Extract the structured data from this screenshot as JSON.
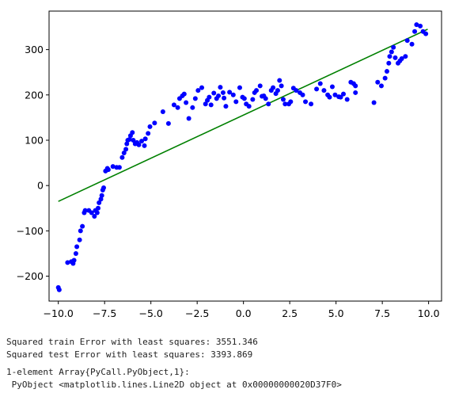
{
  "chart_data": {
    "type": "scatter",
    "xlim": [
      -10.5,
      10.7
    ],
    "ylim": [
      -255,
      385
    ],
    "xticks": [
      -10.0,
      -7.5,
      -5.0,
      -2.5,
      0.0,
      2.5,
      5.0,
      7.5,
      10.0
    ],
    "xtick_labels": [
      "−10.0",
      "−7.5",
      "−5.0",
      "−2.5",
      "0.0",
      "2.5",
      "5.0",
      "7.5",
      "10.0"
    ],
    "yticks": [
      -200,
      -100,
      0,
      100,
      200,
      300
    ],
    "ytick_labels": [
      "−200",
      "−100",
      "0",
      "100",
      "200",
      "300"
    ],
    "grid": false,
    "legend": "none",
    "scatter_color": "#0000ff",
    "line_color": "#008000",
    "scatter_x": [
      -10.0,
      -9.95,
      -9.5,
      -9.3,
      -9.2,
      -9.15,
      -9.05,
      -9.0,
      -8.85,
      -8.8,
      -8.7,
      -8.6,
      -8.55,
      -8.35,
      -8.2,
      -8.05,
      -8.0,
      -7.9,
      -7.85,
      -7.8,
      -7.7,
      -7.65,
      -7.6,
      -7.55,
      -7.45,
      -7.35,
      -7.3,
      -7.05,
      -6.85,
      -6.7,
      -6.55,
      -6.45,
      -6.35,
      -6.3,
      -6.25,
      -6.15,
      -6.1,
      -6.0,
      -5.95,
      -5.85,
      -5.75,
      -5.65,
      -5.5,
      -5.35,
      -5.3,
      -5.15,
      -5.05,
      -4.8,
      -4.35,
      -4.05,
      -3.75,
      -3.55,
      -3.45,
      -3.3,
      -3.2,
      -3.1,
      -2.95,
      -2.75,
      -2.6,
      -2.45,
      -2.25,
      -2.05,
      -1.95,
      -1.85,
      -1.75,
      -1.6,
      -1.45,
      -1.35,
      -1.25,
      -1.1,
      -1.05,
      -0.95,
      -0.75,
      -0.55,
      -0.4,
      -0.2,
      -0.05,
      0.05,
      0.15,
      0.3,
      0.5,
      0.6,
      0.7,
      0.9,
      1.0,
      1.1,
      1.2,
      1.35,
      1.5,
      1.6,
      1.75,
      1.85,
      1.95,
      2.05,
      2.15,
      2.25,
      2.45,
      2.55,
      2.7,
      2.85,
      3.05,
      3.2,
      3.35,
      3.65,
      3.95,
      4.15,
      4.35,
      4.55,
      4.65,
      4.8,
      4.95,
      5.15,
      5.25,
      5.4,
      5.6,
      5.8,
      5.95,
      6.05,
      6.05,
      7.05,
      7.25,
      7.45,
      7.65,
      7.75,
      7.85,
      7.9,
      8.0,
      8.1,
      8.2,
      8.35,
      8.45,
      8.55,
      8.75,
      8.85,
      9.1,
      9.25,
      9.35,
      9.55,
      9.7,
      9.85
    ],
    "scatter_y": [
      -225,
      -230,
      -170,
      -168,
      -172,
      -165,
      -150,
      -135,
      -120,
      -100,
      -90,
      -60,
      -55,
      -55,
      -60,
      -68,
      -55,
      -60,
      -50,
      -38,
      -30,
      -22,
      -10,
      -5,
      32,
      38,
      35,
      42,
      40,
      40,
      62,
      72,
      80,
      92,
      100,
      102,
      110,
      117,
      100,
      92,
      95,
      90,
      98,
      88,
      103,
      115,
      130,
      138,
      163,
      137,
      178,
      172,
      192,
      198,
      202,
      183,
      148,
      172,
      192,
      210,
      216,
      180,
      188,
      195,
      178,
      204,
      192,
      198,
      217,
      205,
      193,
      175,
      206,
      200,
      185,
      216,
      195,
      192,
      180,
      175,
      190,
      205,
      210,
      220,
      197,
      198,
      192,
      180,
      210,
      216,
      203,
      210,
      232,
      220,
      190,
      180,
      180,
      185,
      215,
      210,
      205,
      200,
      185,
      180,
      213,
      225,
      210,
      200,
      195,
      218,
      200,
      196,
      195,
      202,
      190,
      228,
      225,
      220,
      205,
      183,
      228,
      220,
      237,
      252,
      270,
      285,
      295,
      305,
      282,
      270,
      275,
      280,
      285,
      320,
      312,
      340,
      355,
      352,
      340,
      335
    ],
    "fit_line": {
      "x": [
        -10.0,
        9.95
      ],
      "y": [
        -35,
        345
      ]
    }
  },
  "output": {
    "line1": "Squared train Error with least squares: 3551.346",
    "line2": "Squared test Error with least squares: 3393.869",
    "line3": "1-element Array{PyCall.PyObject,1}:",
    "line4": " PyObject <matplotlib.lines.Line2D object at 0x00000000020D37F0>"
  }
}
